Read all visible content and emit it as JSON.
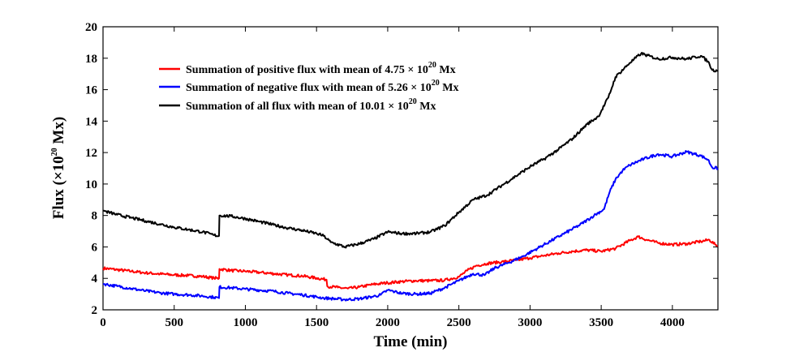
{
  "chart_data": {
    "type": "line",
    "xlabel": "Time (min)",
    "ylabel_prefix": "Flux (×10",
    "ylabel_exp": "20",
    "ylabel_suffix": " Mx)",
    "xlim": [
      0,
      4320
    ],
    "ylim": [
      2,
      20
    ],
    "xticks": [
      0,
      500,
      1000,
      1500,
      2000,
      2500,
      3000,
      3500,
      4000
    ],
    "yticks": [
      2,
      4,
      6,
      8,
      10,
      12,
      14,
      16,
      18,
      20
    ],
    "legend_position": "top-left",
    "series": [
      {
        "name": "Summation of positive flux",
        "legend_prefix": "Summation of positive flux with mean of  4.75 × 10",
        "legend_exp": "20",
        "legend_suffix": " Mx",
        "color": "#ff0000",
        "points": [
          [
            0,
            4.65
          ],
          [
            100,
            4.55
          ],
          [
            200,
            4.45
          ],
          [
            300,
            4.35
          ],
          [
            400,
            4.28
          ],
          [
            500,
            4.22
          ],
          [
            600,
            4.18
          ],
          [
            700,
            4.12
          ],
          [
            780,
            4.02
          ],
          [
            815,
            4.0
          ],
          [
            818,
            4.6
          ],
          [
            900,
            4.5
          ],
          [
            1000,
            4.45
          ],
          [
            1100,
            4.38
          ],
          [
            1200,
            4.3
          ],
          [
            1300,
            4.22
          ],
          [
            1400,
            4.15
          ],
          [
            1500,
            4.02
          ],
          [
            1570,
            3.92
          ],
          [
            1575,
            3.5
          ],
          [
            1650,
            3.42
          ],
          [
            1720,
            3.35
          ],
          [
            1800,
            3.45
          ],
          [
            1900,
            3.62
          ],
          [
            2000,
            3.72
          ],
          [
            2100,
            3.8
          ],
          [
            2200,
            3.85
          ],
          [
            2300,
            3.85
          ],
          [
            2400,
            3.88
          ],
          [
            2500,
            4.1
          ],
          [
            2560,
            4.5
          ],
          [
            2620,
            4.8
          ],
          [
            2700,
            4.95
          ],
          [
            2800,
            5.05
          ],
          [
            2900,
            5.15
          ],
          [
            3000,
            5.3
          ],
          [
            3100,
            5.45
          ],
          [
            3200,
            5.6
          ],
          [
            3300,
            5.72
          ],
          [
            3400,
            5.8
          ],
          [
            3500,
            5.72
          ],
          [
            3600,
            5.9
          ],
          [
            3700,
            6.4
          ],
          [
            3760,
            6.65
          ],
          [
            3820,
            6.45
          ],
          [
            3900,
            6.25
          ],
          [
            4000,
            6.15
          ],
          [
            4100,
            6.2
          ],
          [
            4200,
            6.35
          ],
          [
            4260,
            6.45
          ],
          [
            4300,
            6.15
          ],
          [
            4320,
            6.05
          ]
        ]
      },
      {
        "name": "Summation of negative flux",
        "legend_prefix": "Summation of negative flux with mean of  5.26 × 10",
        "legend_exp": "20",
        "legend_suffix": " Mx",
        "color": "#0000ff",
        "points": [
          [
            0,
            3.65
          ],
          [
            100,
            3.5
          ],
          [
            200,
            3.35
          ],
          [
            300,
            3.2
          ],
          [
            400,
            3.08
          ],
          [
            500,
            3.0
          ],
          [
            600,
            2.95
          ],
          [
            700,
            2.88
          ],
          [
            780,
            2.8
          ],
          [
            815,
            2.75
          ],
          [
            818,
            3.45
          ],
          [
            900,
            3.4
          ],
          [
            1000,
            3.32
          ],
          [
            1100,
            3.25
          ],
          [
            1200,
            3.18
          ],
          [
            1300,
            3.05
          ],
          [
            1400,
            2.95
          ],
          [
            1500,
            2.82
          ],
          [
            1550,
            2.75
          ],
          [
            1600,
            2.72
          ],
          [
            1700,
            2.65
          ],
          [
            1800,
            2.7
          ],
          [
            1900,
            2.85
          ],
          [
            1950,
            2.95
          ],
          [
            2000,
            3.25
          ],
          [
            2050,
            3.15
          ],
          [
            2100,
            3.05
          ],
          [
            2200,
            3.0
          ],
          [
            2300,
            3.05
          ],
          [
            2400,
            3.4
          ],
          [
            2500,
            3.85
          ],
          [
            2600,
            4.3
          ],
          [
            2680,
            4.2
          ],
          [
            2750,
            4.65
          ],
          [
            2850,
            5.0
          ],
          [
            2950,
            5.4
          ],
          [
            3050,
            5.9
          ],
          [
            3150,
            6.4
          ],
          [
            3250,
            6.9
          ],
          [
            3350,
            7.4
          ],
          [
            3450,
            8.0
          ],
          [
            3520,
            8.4
          ],
          [
            3560,
            9.5
          ],
          [
            3600,
            10.3
          ],
          [
            3650,
            10.85
          ],
          [
            3700,
            11.2
          ],
          [
            3800,
            11.6
          ],
          [
            3900,
            11.9
          ],
          [
            4000,
            11.75
          ],
          [
            4100,
            12.05
          ],
          [
            4200,
            11.8
          ],
          [
            4250,
            11.55
          ],
          [
            4280,
            11.05
          ],
          [
            4320,
            11.0
          ]
        ]
      },
      {
        "name": "Summation of all flux",
        "legend_prefix": "Summation of all flux with mean of  10.01 × 10",
        "legend_exp": "20",
        "legend_suffix": " Mx",
        "color": "#000000",
        "points": [
          [
            0,
            8.3
          ],
          [
            100,
            8.05
          ],
          [
            200,
            7.85
          ],
          [
            300,
            7.65
          ],
          [
            400,
            7.45
          ],
          [
            500,
            7.25
          ],
          [
            600,
            7.1
          ],
          [
            700,
            6.95
          ],
          [
            780,
            6.75
          ],
          [
            815,
            6.7
          ],
          [
            818,
            8.0
          ],
          [
            900,
            7.95
          ],
          [
            1000,
            7.8
          ],
          [
            1100,
            7.6
          ],
          [
            1200,
            7.4
          ],
          [
            1300,
            7.2
          ],
          [
            1400,
            7.05
          ],
          [
            1500,
            6.85
          ],
          [
            1550,
            6.7
          ],
          [
            1600,
            6.3
          ],
          [
            1700,
            6.0
          ],
          [
            1800,
            6.2
          ],
          [
            1900,
            6.5
          ],
          [
            2000,
            6.95
          ],
          [
            2100,
            6.85
          ],
          [
            2200,
            6.85
          ],
          [
            2300,
            6.95
          ],
          [
            2400,
            7.35
          ],
          [
            2500,
            8.2
          ],
          [
            2600,
            9.0
          ],
          [
            2700,
            9.3
          ],
          [
            2800,
            9.9
          ],
          [
            2900,
            10.5
          ],
          [
            3000,
            11.1
          ],
          [
            3100,
            11.6
          ],
          [
            3200,
            12.2
          ],
          [
            3300,
            12.9
          ],
          [
            3400,
            13.8
          ],
          [
            3480,
            14.3
          ],
          [
            3550,
            15.5
          ],
          [
            3600,
            16.8
          ],
          [
            3700,
            17.7
          ],
          [
            3780,
            18.3
          ],
          [
            3900,
            17.95
          ],
          [
            4000,
            18.05
          ],
          [
            4100,
            17.95
          ],
          [
            4200,
            18.15
          ],
          [
            4250,
            17.8
          ],
          [
            4280,
            17.25
          ],
          [
            4320,
            17.2
          ]
        ]
      }
    ]
  }
}
